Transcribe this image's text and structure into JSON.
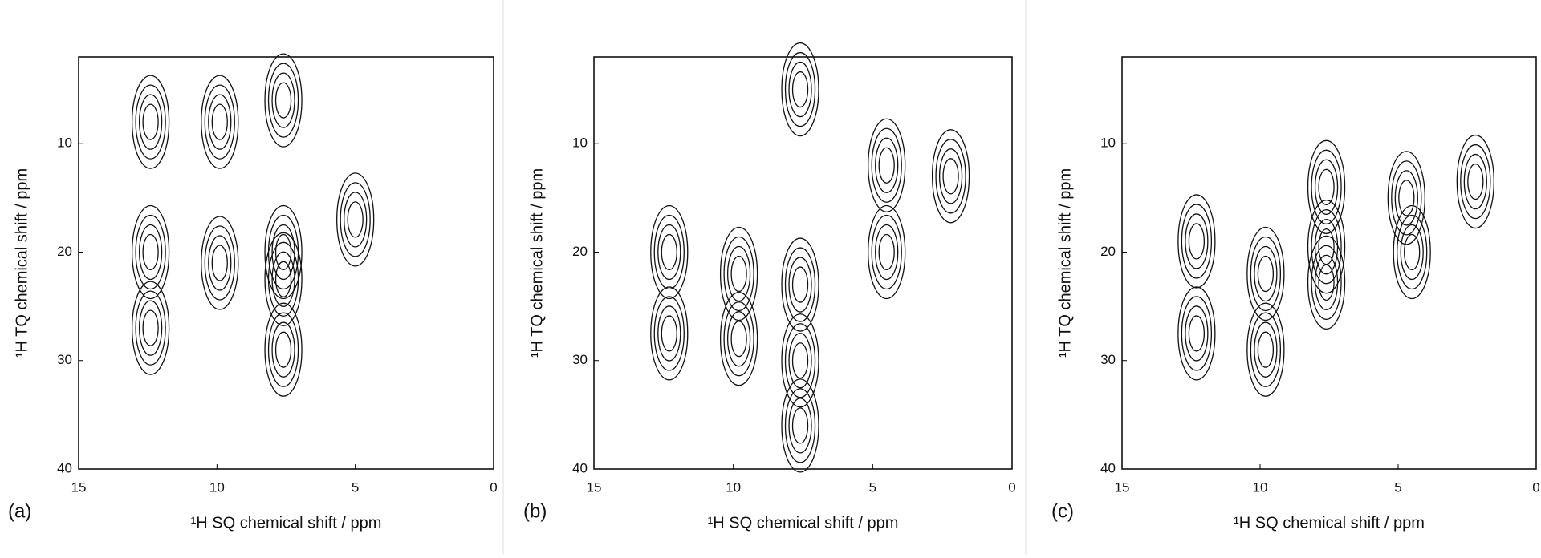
{
  "chart_data": [
    {
      "type": "contour",
      "label": "(a)",
      "x_label": "¹H SQ chemical shift / ppm",
      "y_label": "¹H TQ chemical shift / ppm",
      "xlim": [
        15,
        0
      ],
      "ylim": [
        40,
        2
      ],
      "xticks": [
        15,
        10,
        5,
        0
      ],
      "yticks": [
        10,
        20,
        30,
        40
      ],
      "peaks": {
        "x": [
          12.4,
          12.4,
          12.4,
          9.9,
          9.9,
          7.6,
          7.6,
          7.6,
          7.6,
          5
        ],
        "y": [
          8,
          20,
          27,
          8,
          21,
          6,
          20,
          22.5,
          29,
          17
        ]
      }
    },
    {
      "type": "contour",
      "label": "(b)",
      "x_label": "¹H SQ chemical shift / ppm",
      "y_label": "¹H TQ chemical shift / ppm",
      "xlim": [
        15,
        0
      ],
      "ylim": [
        40,
        2
      ],
      "xticks": [
        15,
        10,
        5,
        0
      ],
      "yticks": [
        10,
        20,
        30,
        40
      ],
      "peaks": {
        "x": [
          12.3,
          12.3,
          9.8,
          9.8,
          7.6,
          7.6,
          7.6,
          7.6,
          4.5,
          4.5,
          2.2
        ],
        "y": [
          27.5,
          20,
          22,
          28,
          5,
          23,
          30,
          36,
          12,
          20,
          13
        ]
      }
    },
    {
      "type": "contour",
      "label": "(c)",
      "x_label": "¹H SQ chemical shift / ppm",
      "y_label": "¹H TQ chemical shift / ppm",
      "xlim": [
        15,
        0
      ],
      "ylim": [
        40,
        2
      ],
      "xticks": [
        15,
        10,
        5,
        0
      ],
      "yticks": [
        10,
        20,
        30,
        40
      ],
      "peaks": {
        "x": [
          12.3,
          12.3,
          9.8,
          9.8,
          7.6,
          7.6,
          7.6,
          4.7,
          4.5,
          2.2
        ],
        "y": [
          19,
          27.5,
          22,
          29,
          14,
          19.5,
          22.8,
          15,
          20,
          13.5
        ]
      }
    }
  ]
}
